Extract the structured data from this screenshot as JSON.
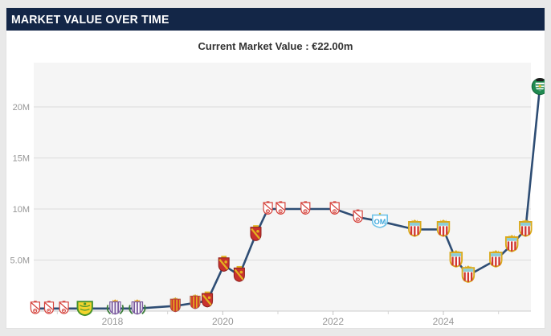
{
  "header": {
    "title": "MARKET VALUE OVER TIME",
    "bg_color": "#132647",
    "text_color": "#ffffff"
  },
  "chart": {
    "subtitle": "Current Market Value : €22.00m"
  },
  "chart_data": {
    "type": "line",
    "title": "Current Market Value : €22.00m",
    "xlabel": "",
    "ylabel": "",
    "x_range": [
      2016.45,
      2025.9
    ],
    "y_range": [
      0,
      24.3
    ],
    "grid": "horizontal-only",
    "legend": "none",
    "plot_bg": "#f5f5f5",
    "grid_color": "#dcdcdc",
    "axis_color": "#cccccc",
    "tick_text_color": "#979797",
    "line_color": "#2e4d74",
    "y_ticks": [
      {
        "value": 5,
        "label": "5.0M"
      },
      {
        "value": 10,
        "label": "10M"
      },
      {
        "value": 15,
        "label": "15M"
      },
      {
        "value": 20,
        "label": "20M"
      }
    ],
    "x_ticks": [
      {
        "value": 2018,
        "label": "2018"
      },
      {
        "value": 2020,
        "label": "2020"
      },
      {
        "value": 2022,
        "label": "2022"
      },
      {
        "value": 2024,
        "label": "2024"
      }
    ],
    "x_minor_ticks": [
      2017,
      2019,
      2021,
      2023,
      2025
    ],
    "points": [
      {
        "x": 2016.6,
        "y": 0.25,
        "club": "rw"
      },
      {
        "x": 2016.85,
        "y": 0.25,
        "club": "rw"
      },
      {
        "x": 2017.12,
        "y": 0.25,
        "club": "rw"
      },
      {
        "x": 2017.5,
        "y": 0.25,
        "club": "yg"
      },
      {
        "x": 2018.05,
        "y": 0.25,
        "club": "pw"
      },
      {
        "x": 2018.45,
        "y": 0.25,
        "club": "pw"
      },
      {
        "x": 2019.14,
        "y": 0.5,
        "club": "ry"
      },
      {
        "x": 2019.5,
        "y": 0.8,
        "club": "ry"
      },
      {
        "x": 2019.72,
        "y": 1.0,
        "club": "rz"
      },
      {
        "x": 2020.02,
        "y": 4.5,
        "club": "rz"
      },
      {
        "x": 2020.3,
        "y": 3.5,
        "club": "rz"
      },
      {
        "x": 2020.6,
        "y": 7.5,
        "club": "rz"
      },
      {
        "x": 2020.82,
        "y": 10.0,
        "club": "rw"
      },
      {
        "x": 2021.05,
        "y": 10.0,
        "club": "rw"
      },
      {
        "x": 2021.5,
        "y": 10.0,
        "club": "rw"
      },
      {
        "x": 2022.03,
        "y": 10.0,
        "club": "rw"
      },
      {
        "x": 2022.45,
        "y": 9.2,
        "club": "rw"
      },
      {
        "x": 2022.85,
        "y": 8.8,
        "club": "om"
      },
      {
        "x": 2023.48,
        "y": 8.0,
        "club": "al"
      },
      {
        "x": 2024.0,
        "y": 8.0,
        "club": "al"
      },
      {
        "x": 2024.23,
        "y": 5.0,
        "club": "al"
      },
      {
        "x": 2024.45,
        "y": 3.5,
        "club": "al"
      },
      {
        "x": 2024.95,
        "y": 5.0,
        "club": "al"
      },
      {
        "x": 2025.24,
        "y": 6.5,
        "club": "al"
      },
      {
        "x": 2025.49,
        "y": 8.0,
        "club": "al"
      },
      {
        "x": 2025.75,
        "y": 22.0,
        "club": "sp"
      }
    ],
    "clubs": {
      "rw": {
        "icon": "red-white-shield-crest",
        "colors": [
          "#ffffff",
          "#d5433c"
        ]
      },
      "yg": {
        "icon": "yellow-green-shield-crest",
        "colors": [
          "#f3d42c",
          "#48932c"
        ]
      },
      "pw": {
        "icon": "purple-white-crowned-shield-crest",
        "colors": [
          "#ffffff",
          "#7a5a9e",
          "#e0a32e",
          "#3c7d3c"
        ]
      },
      "ry": {
        "icon": "red-yellow-striped-shield-crest",
        "colors": [
          "#e5b91e",
          "#cf3531"
        ]
      },
      "rz": {
        "icon": "red-gold-shield-crest",
        "colors": [
          "#c8322e",
          "#e3b31f"
        ]
      },
      "om": {
        "icon": "white-lightblue-OM-shield-crest",
        "letters": "OM",
        "colors": [
          "#ffffff",
          "#3fa8dc"
        ]
      },
      "al": {
        "icon": "gold-bordered-red-white-striped-crowned-shield-crest",
        "colors": [
          "#d9a91c",
          "#8ccdd8",
          "#cf3531",
          "#ffffff"
        ]
      },
      "sp": {
        "icon": "green-white-round-crest",
        "colors": [
          "#1f8a50",
          "#ffffff",
          "#e8c12b"
        ]
      }
    }
  }
}
